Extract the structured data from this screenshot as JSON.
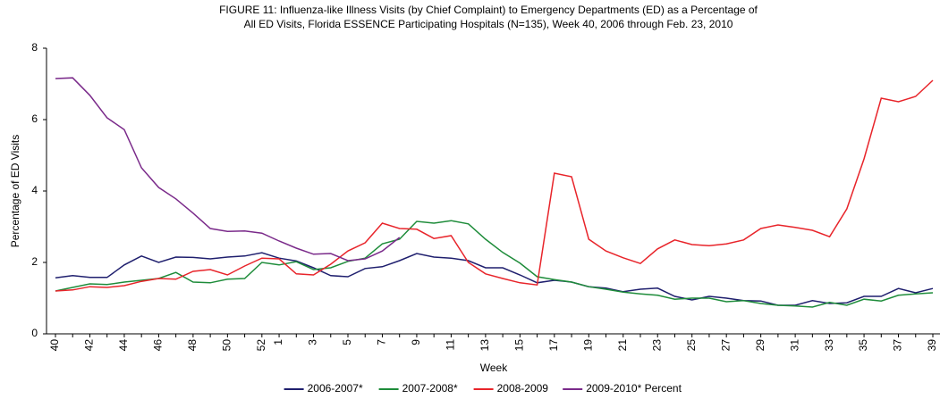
{
  "chart_data": {
    "type": "line",
    "title": [
      "FIGURE 11: Influenza-like Illness Visits (by Chief Complaint) to Emergency Departments (ED) as a Percentage of",
      "All ED Visits, Florida ESSENCE Participating Hospitals (N=135), Week 40, 2006 through Feb. 23, 2010"
    ],
    "x_label": "Week",
    "y_label": "Percentage of ED Visits",
    "categories": [
      "40",
      null,
      "42",
      null,
      "44",
      null,
      "46",
      null,
      "48",
      null,
      "50",
      null,
      "52",
      "1",
      null,
      "3",
      null,
      "5",
      null,
      "7",
      null,
      "9",
      null,
      "11",
      null,
      "13",
      null,
      "15",
      null,
      "17",
      null,
      "19",
      null,
      "21",
      null,
      "23",
      null,
      "25",
      null,
      "27",
      null,
      "29",
      null,
      "31",
      null,
      "33",
      null,
      "35",
      null,
      "37",
      null,
      "39"
    ],
    "ylim": [
      0,
      8
    ],
    "yticks": [
      0,
      2,
      4,
      6,
      8
    ],
    "grid": false,
    "legend": "bottom",
    "series": [
      {
        "name": "2006-2007*",
        "color": "#1f1f6e",
        "values": [
          1.57,
          1.63,
          1.58,
          1.58,
          1.93,
          2.18,
          2.0,
          2.15,
          2.14,
          2.1,
          2.15,
          2.18,
          2.27,
          2.12,
          2.04,
          1.85,
          1.63,
          1.6,
          1.83,
          1.88,
          2.05,
          2.25,
          2.15,
          2.12,
          2.05,
          1.85,
          1.85,
          1.65,
          1.43,
          1.5,
          1.45,
          1.32,
          1.28,
          1.18,
          1.25,
          1.28,
          1.05,
          0.95,
          1.05,
          1.0,
          0.93,
          0.92,
          0.8,
          0.8,
          0.93,
          0.85,
          0.87,
          1.05,
          1.05,
          1.27,
          1.15,
          1.27
        ]
      },
      {
        "name": "2007-2008*",
        "color": "#1e8c3a",
        "values": [
          1.2,
          1.3,
          1.4,
          1.38,
          1.45,
          1.5,
          1.55,
          1.72,
          1.45,
          1.43,
          1.53,
          1.55,
          2.0,
          1.93,
          2.02,
          1.8,
          1.85,
          2.03,
          2.12,
          2.52,
          2.65,
          3.15,
          3.1,
          3.17,
          3.08,
          2.65,
          2.28,
          1.98,
          1.6,
          1.52,
          1.45,
          1.32,
          1.25,
          1.17,
          1.12,
          1.08,
          0.97,
          1.0,
          1.0,
          0.9,
          0.93,
          0.85,
          0.8,
          0.78,
          0.75,
          0.88,
          0.8,
          0.97,
          0.92,
          1.08,
          1.12,
          1.15
        ]
      },
      {
        "name": "2008-2009",
        "color": "#e8242a",
        "values": [
          1.2,
          1.23,
          1.32,
          1.3,
          1.35,
          1.47,
          1.55,
          1.53,
          1.75,
          1.8,
          1.65,
          1.9,
          2.12,
          2.1,
          1.68,
          1.65,
          1.95,
          2.32,
          2.55,
          3.1,
          2.95,
          2.93,
          2.67,
          2.75,
          2.0,
          1.68,
          1.55,
          1.43,
          1.37,
          4.5,
          4.4,
          2.65,
          2.32,
          2.13,
          1.97,
          2.38,
          2.63,
          2.5,
          2.47,
          2.52,
          2.63,
          2.95,
          3.05,
          2.98,
          2.9,
          2.72,
          3.5,
          4.9,
          6.6,
          6.5,
          6.65,
          7.1
        ]
      },
      {
        "name": "2009-2010* Percent",
        "color": "#7a2a8a",
        "values": [
          7.15,
          7.17,
          6.68,
          6.05,
          5.72,
          4.65,
          4.1,
          3.78,
          3.38,
          2.95,
          2.87,
          2.88,
          2.82,
          2.6,
          2.4,
          2.23,
          2.25,
          2.05,
          2.1,
          2.32,
          2.7,
          null,
          null,
          null,
          null,
          null,
          null,
          null,
          null,
          null,
          null,
          null,
          null,
          null,
          null,
          null,
          null,
          null,
          null,
          null,
          null,
          null,
          null,
          null,
          null,
          null,
          null,
          null,
          null,
          null,
          null,
          null
        ]
      }
    ]
  }
}
